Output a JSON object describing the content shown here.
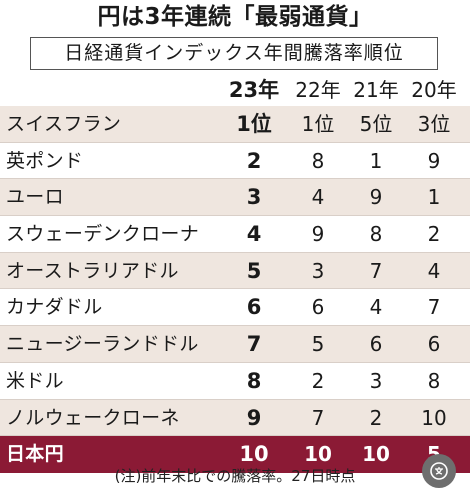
{
  "title": "円は3年連続「最弱通貨」",
  "subtitle": "日経通貨インデックス年間騰落率順位",
  "columns": [
    "23年",
    "22年",
    "21年",
    "20年"
  ],
  "rows": [
    {
      "name": "スイスフラン",
      "values": [
        "1位",
        "1位",
        "5位",
        "3位"
      ]
    },
    {
      "name": "英ポンド",
      "values": [
        "2",
        "8",
        "1",
        "9"
      ]
    },
    {
      "name": "ユーロ",
      "values": [
        "3",
        "4",
        "9",
        "1"
      ]
    },
    {
      "name": "スウェーデンクローナ",
      "values": [
        "4",
        "9",
        "8",
        "2"
      ]
    },
    {
      "name": "オーストラリアドル",
      "values": [
        "5",
        "3",
        "7",
        "4"
      ]
    },
    {
      "name": "カナダドル",
      "values": [
        "6",
        "6",
        "4",
        "7"
      ]
    },
    {
      "name": "ニュージーランドドル",
      "values": [
        "7",
        "5",
        "6",
        "6"
      ]
    },
    {
      "name": "米ドル",
      "values": [
        "8",
        "2",
        "3",
        "8"
      ]
    },
    {
      "name": "ノルウェークローネ",
      "values": [
        "9",
        "7",
        "2",
        "10"
      ]
    },
    {
      "name": "日本円",
      "values": [
        "10",
        "10",
        "10",
        "5"
      ]
    }
  ],
  "note": "(注)前年末比での騰落率。27日時点",
  "corner_icon": "translate-icon",
  "colors": {
    "highlight": "#8b1a35",
    "shade": "#efe6df"
  }
}
